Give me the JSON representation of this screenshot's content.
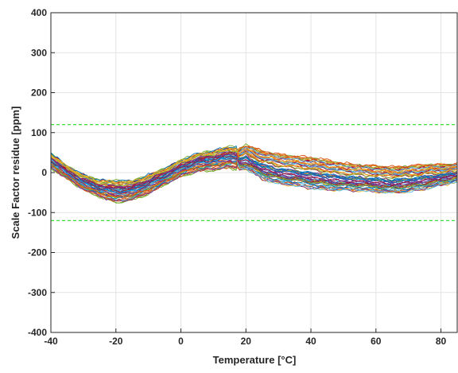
{
  "chart_data": {
    "type": "line",
    "title": "",
    "xlabel": "Temperature [°C]",
    "ylabel": "Scale Factor residue [ppm]",
    "xlim": [
      -40,
      85
    ],
    "ylim": [
      -400,
      400
    ],
    "x_ticks": [
      -40,
      -20,
      0,
      20,
      40,
      60,
      80
    ],
    "y_ticks": [
      -400,
      -300,
      -200,
      -100,
      0,
      100,
      200,
      300,
      400
    ],
    "grid": true,
    "legend": "none",
    "threshold_lines": [
      {
        "y": 120,
        "color": "#22dd22",
        "style": "dashed"
      },
      {
        "y": -120,
        "color": "#22dd22",
        "style": "dashed"
      }
    ],
    "series_count": 60,
    "series_colors": [
      "#0072BD",
      "#D95319",
      "#EDB120",
      "#7E2F8E",
      "#77AC30",
      "#4DBEEE",
      "#A2142F"
    ],
    "x": [
      -40,
      -35,
      -30,
      -25,
      -20,
      -15,
      -10,
      -5,
      0,
      5,
      10,
      15,
      18,
      20,
      25,
      30,
      35,
      40,
      45,
      50,
      55,
      60,
      65,
      70,
      75,
      80,
      85
    ],
    "envelope": {
      "upper": [
        55,
        20,
        0,
        -20,
        -28,
        -25,
        -10,
        10,
        35,
        60,
        80,
        95,
        90,
        95,
        75,
        55,
        45,
        35,
        35,
        30,
        30,
        25,
        25,
        30,
        35,
        35,
        35
      ],
      "median": [
        30,
        0,
        -25,
        -40,
        -48,
        -45,
        -30,
        -10,
        10,
        25,
        30,
        38,
        35,
        40,
        20,
        10,
        5,
        0,
        -5,
        -10,
        -12,
        -15,
        -18,
        -15,
        -10,
        -5,
        0
      ],
      "lower": [
        0,
        -25,
        -55,
        -80,
        -110,
        -95,
        -80,
        -50,
        -25,
        -5,
        10,
        15,
        10,
        0,
        -35,
        -60,
        -70,
        -85,
        -80,
        -75,
        -70,
        -75,
        -75,
        -70,
        -60,
        -45,
        -35
      ]
    }
  }
}
